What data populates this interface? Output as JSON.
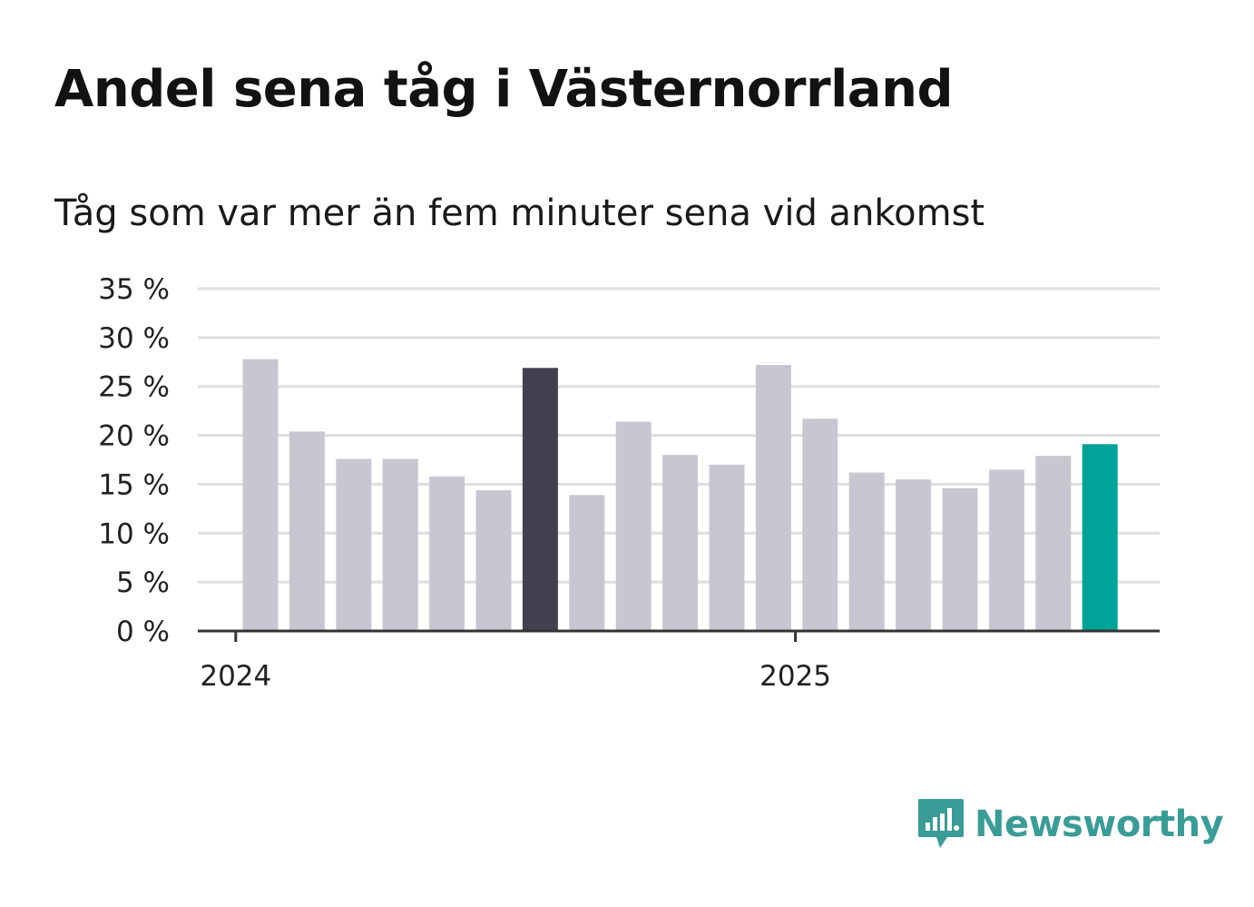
{
  "title": "Andel sena tåg i Västernorrland",
  "subtitle": "Tåg som var mer än fem minuter sena vid ankomst",
  "brand": {
    "name": "Newsworthy",
    "icon": "newsworthy-logo-icon"
  },
  "colors": {
    "default_bar": "#c8c7d1",
    "highlight_bar": "#43414f",
    "latest_bar": "#00a398",
    "grid": "#dedede",
    "axis": "#333333",
    "brand": "#3a9c96"
  },
  "chart_data": {
    "type": "bar",
    "title": "Andel sena tåg i Västernorrland",
    "subtitle": "Tåg som var mer än fem minuter sena vid ankomst",
    "ylim": [
      0,
      35
    ],
    "yticks": [
      0,
      5,
      10,
      15,
      20,
      25,
      30,
      35
    ],
    "ytick_labels": [
      "0 %",
      "5 %",
      "10 %",
      "15 %",
      "20 %",
      "25 %",
      "30 %",
      "35 %"
    ],
    "xtick_labels": [
      {
        "label": "2024",
        "index": 0
      },
      {
        "label": "2025",
        "index": 12
      }
    ],
    "grid": true,
    "values": [
      27.8,
      20.4,
      17.6,
      17.6,
      15.8,
      14.4,
      26.9,
      13.9,
      21.4,
      18.0,
      17.0,
      27.2,
      21.7,
      16.2,
      15.5,
      14.6,
      16.5,
      17.9,
      19.1
    ],
    "highlight_index": 6,
    "latest_index": 18
  }
}
